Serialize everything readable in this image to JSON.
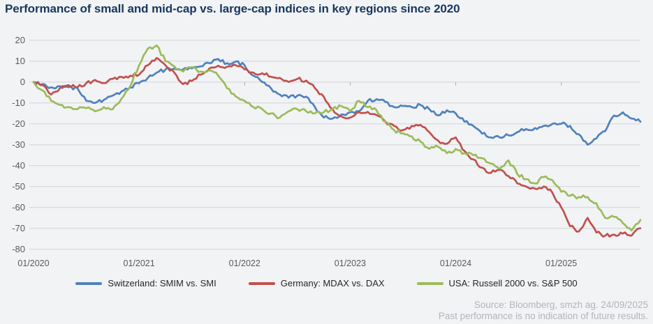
{
  "header": {
    "title": "Performance of small and mid-cap vs. large-cap indices in key regions since 2020"
  },
  "footer": {
    "source": "Source: Bloomberg, smzh ag. 24/09/2025",
    "disclaimer": "Past performance is no indication of future results."
  },
  "chart_data": {
    "type": "line",
    "title": "Performance of small and mid-cap vs. large-cap indices in key regions since 2020",
    "unit": "percent relative performance, indexed to 0 at 01/2020",
    "grid": true,
    "legend_position": "bottom",
    "x_axis": {
      "tick_labels": [
        "01/2020",
        "01/2021",
        "01/2022",
        "01/2023",
        "01/2024",
        "01/2025"
      ],
      "tick_month_positions": [
        0,
        12,
        24,
        36,
        48,
        60
      ],
      "months_total": 69,
      "end_of_data": "09/2025"
    },
    "y_axis": {
      "ticks": [
        20,
        10,
        0,
        -10,
        -20,
        -30,
        -40,
        -50,
        -60,
        -70,
        -80
      ],
      "range": [
        -80,
        20
      ]
    },
    "series": [
      {
        "name": "Switzerland: SMIM vs. SMI",
        "color": "#4f81bd",
        "monthly_values": [
          0,
          -1,
          -2.5,
          -2,
          -2.5,
          -3,
          -9,
          -10,
          -8.5,
          -6.5,
          -4.5,
          -2.5,
          -0.5,
          2,
          4.5,
          6,
          6.5,
          6,
          6.5,
          7.5,
          9,
          11,
          9,
          9.8,
          8,
          3,
          0,
          -3,
          -6,
          -7.5,
          -6.5,
          -7,
          -12,
          -17,
          -17.5,
          -15.5,
          -14.5,
          -14,
          -9,
          -8.2,
          -9.5,
          -12,
          -11.5,
          -12,
          -11,
          -13,
          -16,
          -13.5,
          -15,
          -19,
          -21,
          -24.7,
          -26.5,
          -26.5,
          -25.5,
          -24,
          -22.5,
          -22,
          -21,
          -20,
          -20,
          -21,
          -25,
          -30,
          -27,
          -23.5,
          -16,
          -14.5,
          -17.5,
          -19
        ]
      },
      {
        "name": "Germany: MDAX vs. DAX",
        "color": "#c0504d",
        "monthly_values": [
          0,
          -1.5,
          -6,
          -3,
          -1.5,
          -2.5,
          -0.5,
          1,
          -0.5,
          1.5,
          2.5,
          3,
          3.5,
          8,
          11.5,
          8,
          4.5,
          -1,
          0.5,
          3.5,
          6.5,
          7.8,
          7.3,
          8,
          6,
          4.5,
          4.2,
          2.5,
          2,
          0,
          1.5,
          0.7,
          -3,
          -7,
          -13,
          -16.5,
          -17,
          -14.5,
          -14.3,
          -15.8,
          -19,
          -21,
          -23,
          -21,
          -20.5,
          -24,
          -28,
          -29.5,
          -26.5,
          -33,
          -37,
          -41,
          -43.5,
          -42,
          -45,
          -48.5,
          -50,
          -51,
          -50,
          -53,
          -60,
          -69,
          -71.5,
          -65,
          -72,
          -73.5,
          -73,
          -72.5,
          -73.5,
          -70
        ]
      },
      {
        "name": "USA: Russell 2000 vs. S&P 500",
        "color": "#9bbb59",
        "monthly_values": [
          0,
          -4,
          -9,
          -11,
          -12,
          -13,
          -12.5,
          -14,
          -12,
          -13,
          -8,
          -2,
          8,
          16,
          17.5,
          10,
          7.5,
          5,
          7,
          5,
          5.5,
          3,
          -3,
          -7,
          -9,
          -12,
          -13,
          -15,
          -17,
          -14,
          -13,
          -14,
          -15,
          -14.5,
          -13,
          -11.5,
          -14,
          -9,
          -12,
          -13.5,
          -19,
          -23,
          -24.5,
          -26,
          -28.5,
          -32,
          -31,
          -34,
          -32,
          -34,
          -35,
          -36.5,
          -39,
          -41.5,
          -37.5,
          -44,
          -46.5,
          -48.5,
          -45.5,
          -47,
          -52.5,
          -54.5,
          -55,
          -55,
          -58,
          -65,
          -64.5,
          -67.5,
          -71,
          -66
        ]
      }
    ]
  }
}
